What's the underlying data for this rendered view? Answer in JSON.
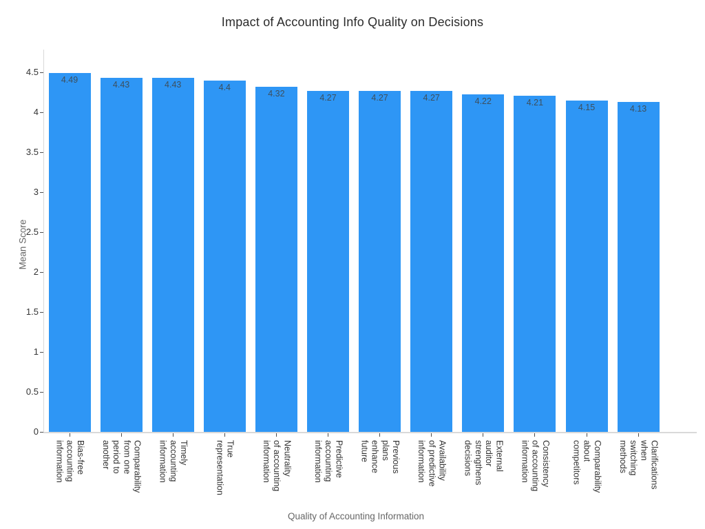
{
  "page": {
    "title": "Impact of Accounting Info Quality on Decisions"
  },
  "colors": {
    "bar": "#2E96F5",
    "axis_line": "#d9d9d9",
    "tick_mark": "#4d4d4d",
    "tick_label": "#333333",
    "axis_title": "#666666",
    "chart_title": "#2b2b2b",
    "value_label": "#3d4f5d"
  },
  "chart_data": {
    "type": "bar",
    "title": "Impact of Accounting Info Quality on Decisions",
    "xlabel": "Quality of Accounting Information",
    "ylabel": "Mean Score",
    "categories": [
      "Bias-free\naccounting\ninformation",
      "Comparability\nfrom one\nperiod to\nanother",
      "Timely\naccounting\ninformation",
      "True\nrepresentation",
      "Neutrality\nof accounting\ninformation",
      "Predictive\naccounting\ninformation",
      "Previous\nplans\nenhance\nfuture",
      "Availability\nof predictive\ninformation",
      "External\nauditor\nstrengthens\ndecisions",
      "Consistency\nof accounting\ninformation",
      "Comparability\nabout\ncompetitors",
      "Clarifications\nwhen\nswitching\nmethods"
    ],
    "values": [
      4.49,
      4.43,
      4.43,
      4.4,
      4.32,
      4.27,
      4.27,
      4.27,
      4.22,
      4.21,
      4.15,
      4.13
    ],
    "value_labels": [
      "4.49",
      "4.43",
      "4.43",
      "4.4",
      "4.32",
      "4.27",
      "4.27",
      "4.27",
      "4.22",
      "4.21",
      "4.15",
      "4.13"
    ],
    "yticks": [
      0,
      0.5,
      1,
      1.5,
      2,
      2.5,
      3,
      3.5,
      4,
      4.5
    ],
    "ylim": [
      0,
      4.78
    ],
    "grid": false,
    "legend": "none",
    "bar_color": "#2E96F5"
  }
}
